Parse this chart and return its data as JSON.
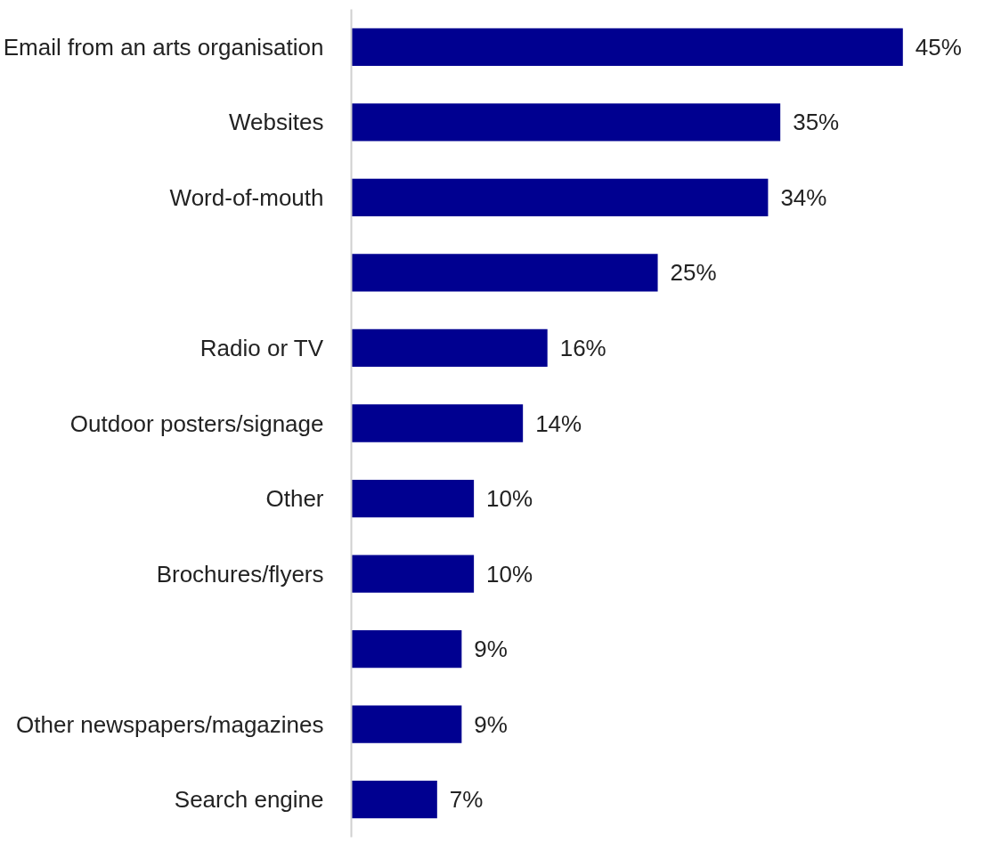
{
  "chart_data": {
    "type": "bar",
    "orientation": "horizontal",
    "categories": [
      "Email from an arts organisation",
      "Websites",
      "Word-of-mouth",
      null,
      "Radio or TV",
      "Outdoor posters/signage",
      "Other",
      "Brochures/flyers",
      null,
      "Other newspapers/magazines",
      "Search engine"
    ],
    "values": [
      45,
      35,
      34,
      25,
      16,
      14,
      10,
      10,
      9,
      9,
      7
    ],
    "value_labels": [
      "45%",
      "35%",
      "34%",
      "25%",
      "16%",
      "14%",
      "10%",
      "10%",
      "9%",
      "9%",
      "7%"
    ],
    "color": "#000090"
  }
}
